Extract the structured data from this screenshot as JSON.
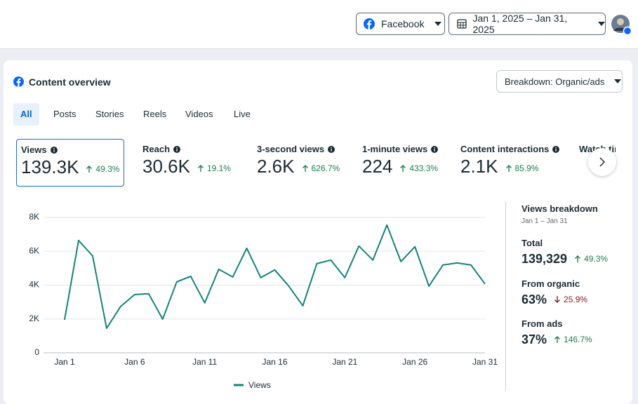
{
  "header": {
    "platform": "Facebook",
    "date_range": "Jan 1, 2025 – Jan 31, 2025"
  },
  "overview": {
    "title": "Content overview",
    "breakdown_button": "Breakdown: Organic/ads",
    "tabs": [
      "All",
      "Posts",
      "Stories",
      "Reels",
      "Videos",
      "Live"
    ],
    "metrics": [
      {
        "label": "Views",
        "value": "139.3K",
        "change": "49.3%"
      },
      {
        "label": "Reach",
        "value": "30.6K",
        "change": "19.1%"
      },
      {
        "label": "3-second views",
        "value": "2.6K",
        "change": "626.7%"
      },
      {
        "label": "1-minute views",
        "value": "224",
        "change": "433.3%"
      },
      {
        "label": "Content interactions",
        "value": "2.1K",
        "change": "85.9%"
      },
      {
        "label": "Watch time"
      }
    ]
  },
  "chart_data": {
    "type": "line",
    "categories": [
      "Jan 1",
      null,
      null,
      null,
      null,
      "Jan 6",
      null,
      null,
      null,
      null,
      "Jan 11",
      null,
      null,
      null,
      null,
      "Jan 16",
      null,
      null,
      null,
      null,
      "Jan 21",
      null,
      null,
      null,
      null,
      "Jan 26",
      null,
      null,
      null,
      null,
      "Jan 31"
    ],
    "series": [
      {
        "name": "Views",
        "color": "#14837d",
        "values": [
          1950,
          6640,
          5730,
          1450,
          2740,
          3440,
          3490,
          1990,
          4190,
          4520,
          2950,
          4940,
          4480,
          6180,
          4440,
          4900,
          3940,
          2780,
          5270,
          5480,
          4440,
          6310,
          5480,
          7550,
          5390,
          6270,
          3940,
          5190,
          5310,
          5190,
          4070
        ]
      }
    ],
    "ylim": [
      0,
      8000
    ],
    "yticks": [
      0,
      {
        "value": 2000,
        "label": "2K"
      },
      {
        "value": 4000,
        "label": "4K"
      },
      {
        "value": 6000,
        "label": "6K"
      },
      {
        "value": 8000,
        "label": "8K"
      }
    ],
    "grid": true,
    "legend": "bottom"
  },
  "breakdown": {
    "title": "Views breakdown",
    "period": "Jan 1 – Jan 31",
    "rows": [
      {
        "label": "Total",
        "value": "139,329",
        "change": "49.3%",
        "direction": "up"
      },
      {
        "label": "From organic",
        "value": "63%",
        "change": "25.9%",
        "direction": "down"
      },
      {
        "label": "From ads",
        "value": "37%",
        "change": "146.7%",
        "direction": "up"
      }
    ]
  }
}
